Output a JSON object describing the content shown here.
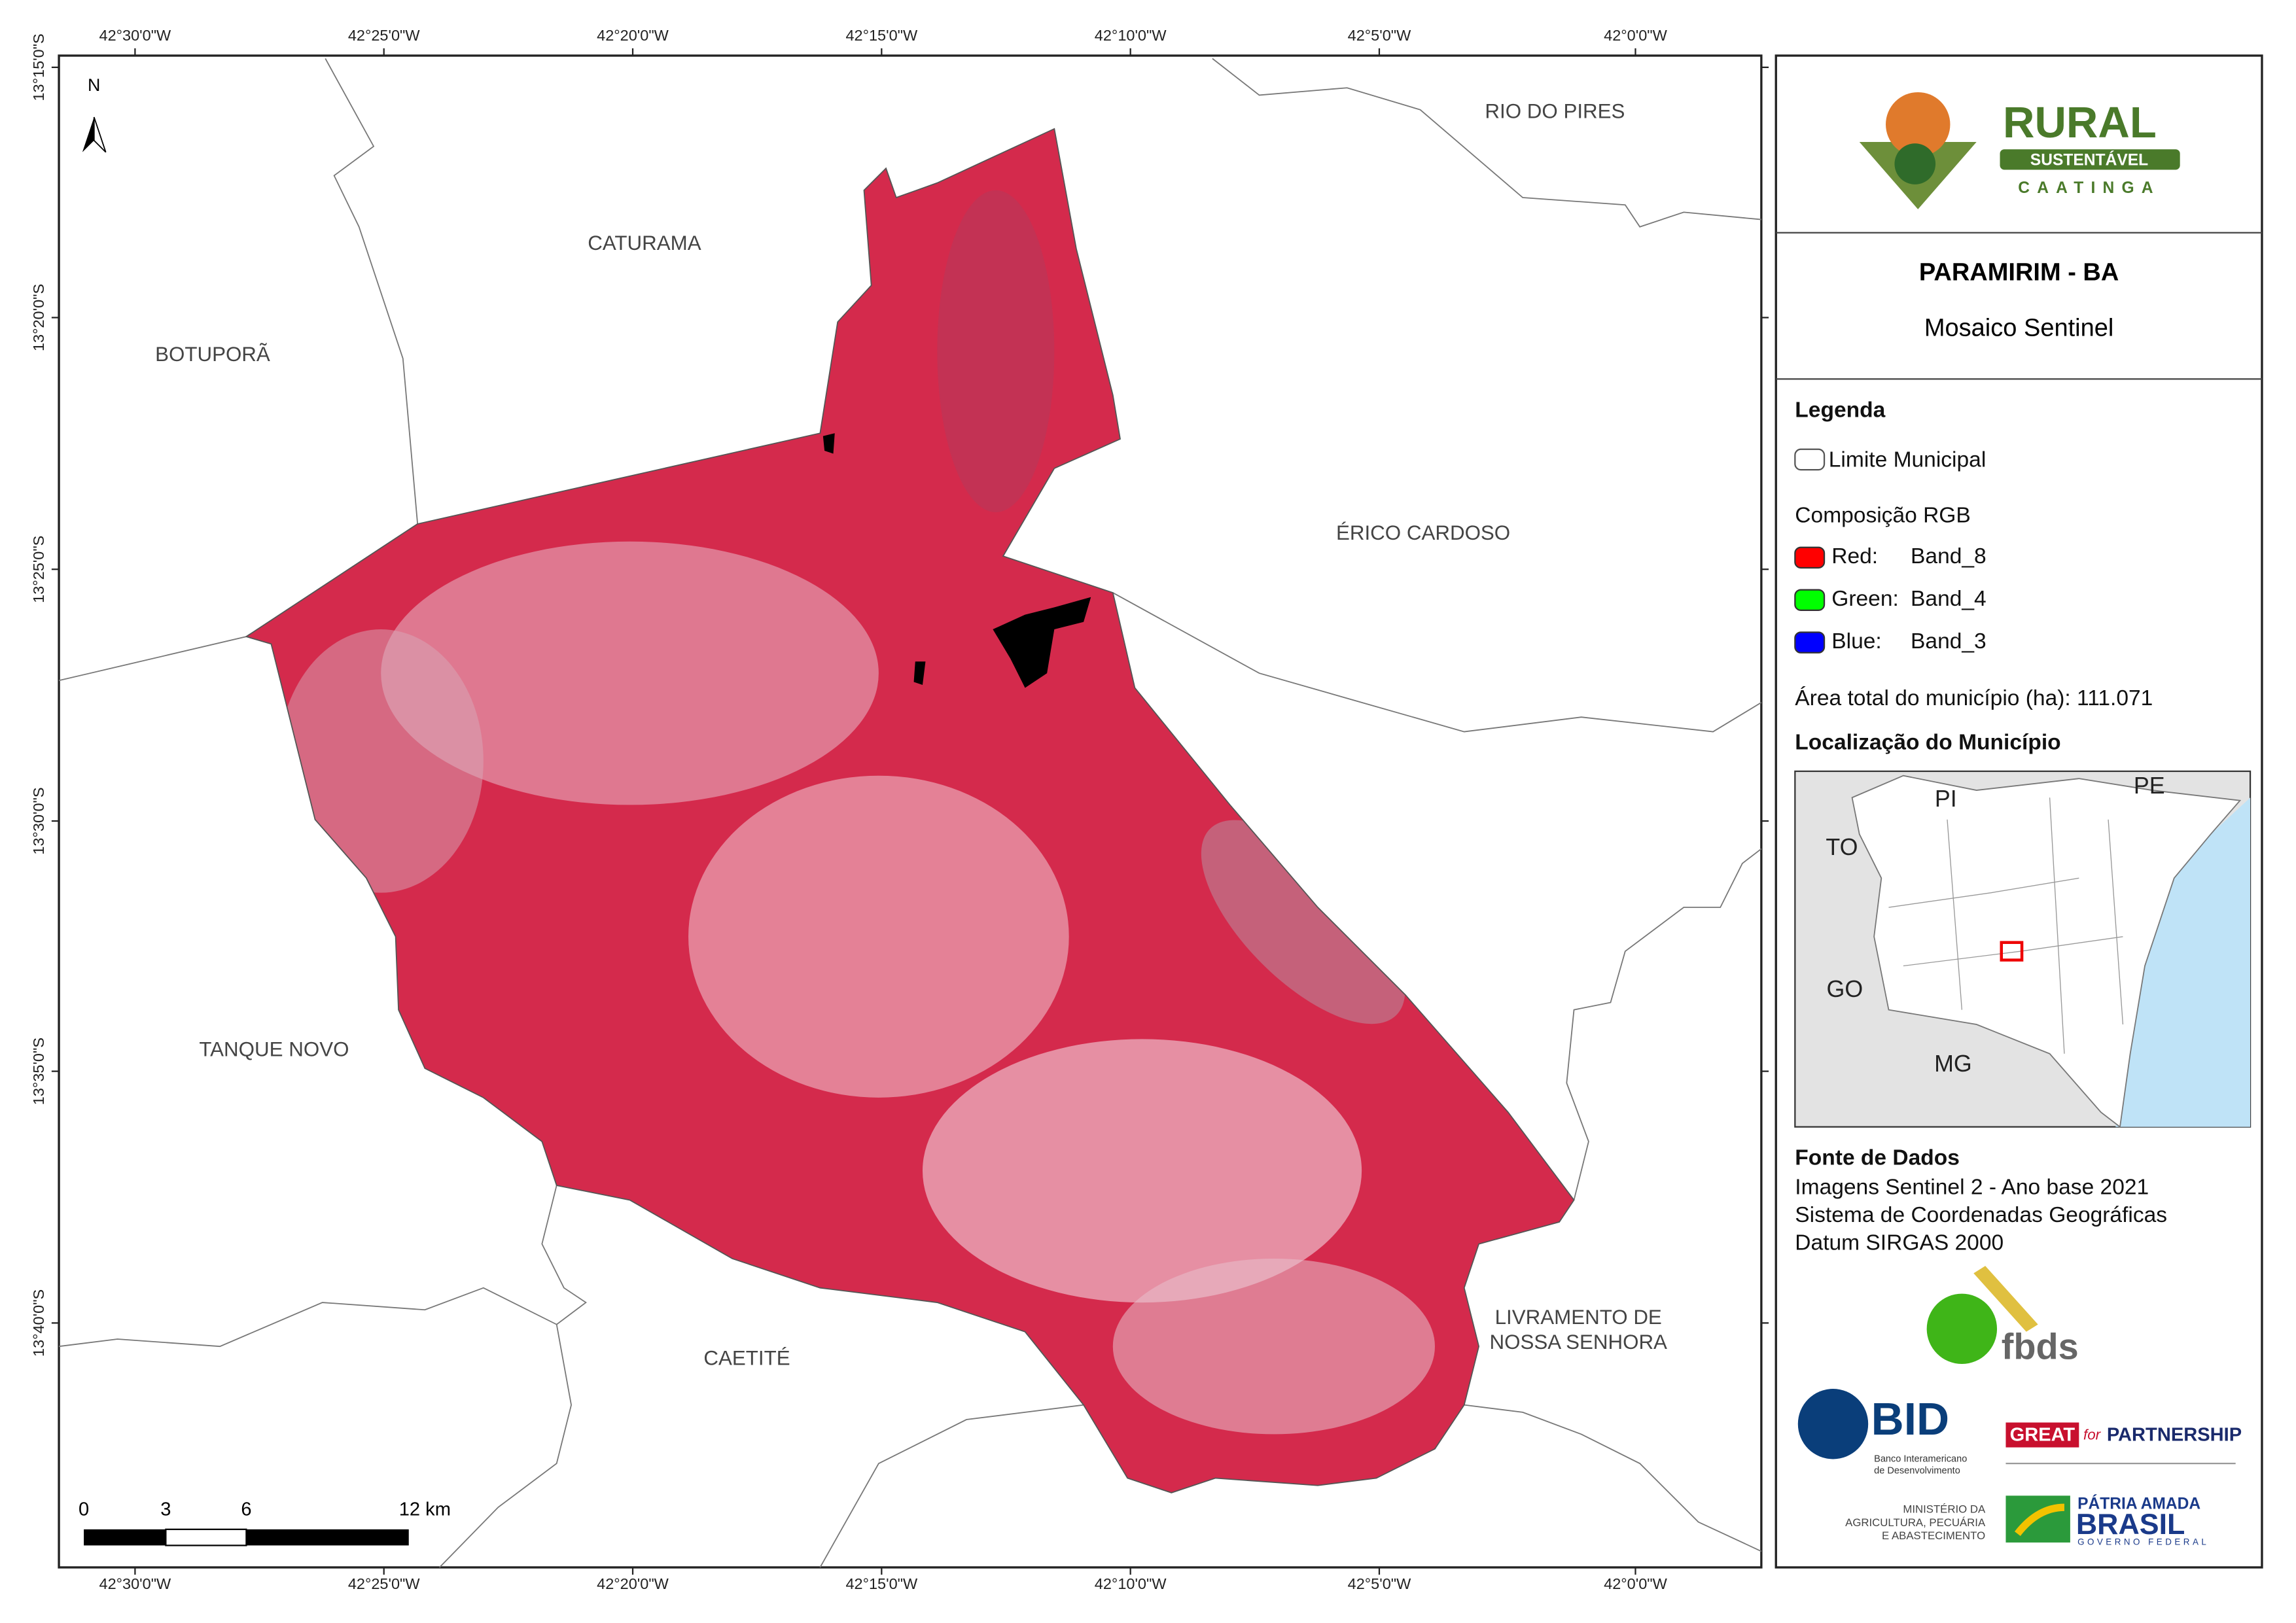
{
  "map": {
    "lon_labels": [
      "42°30'0\"W",
      "42°25'0\"W",
      "42°20'0\"W",
      "42°15'0\"W",
      "42°10'0\"W",
      "42°5'0\"W",
      "42°0'0\"W"
    ],
    "lat_labels": [
      "13°15'0\"S",
      "13°20'0\"S",
      "13°25'0\"S",
      "13°30'0\"S",
      "13°35'0\"S",
      "13°40'0\"S"
    ],
    "north": "N",
    "places": [
      [
        "RIO DO PIRES"
      ],
      [
        "CATURAMA"
      ],
      [
        "BOTUPORÃ"
      ],
      [
        "ÉRICO CARDOSO"
      ],
      [
        "TANQUE NOVO"
      ],
      [
        "CAETITÉ"
      ],
      [
        "LIVRAMENTO DE",
        "NOSSA SENHORA"
      ]
    ],
    "scale_labels": [
      "0",
      "3",
      "6",
      "12 km"
    ]
  },
  "panel": {
    "title": "PARAMIRIM - BA",
    "subtitle": "Mosaico Sentinel",
    "legend_title": "Legenda",
    "boundary": "Limite Municipal",
    "rgb_title": "Composição RGB",
    "bands": [
      {
        "channel": "Red:",
        "band": "Band_8",
        "color": "#ff0000"
      },
      {
        "channel": "Green:",
        "band": "Band_4",
        "color": "#00ff00"
      },
      {
        "channel": "Blue:",
        "band": "Band_3",
        "color": "#0000ff"
      }
    ],
    "area": "Área total do município (ha): 111.071",
    "location_title": "Localização do Município",
    "inset_labels": [
      "PI",
      "PE",
      "TO",
      "GO",
      "MG"
    ],
    "source_title": "Fonte de Dados",
    "source_lines": [
      "Imagens Sentinel 2 - Ano base 2021",
      "Sistema de Coordenadas Geográficas",
      "Datum SIRGAS 2000"
    ]
  },
  "logos": {
    "rural": "RURAL",
    "sustentavel": "SUSTENTÁVEL",
    "caatinga": "CAATINGA",
    "fbds": "fbds",
    "bid": "BID",
    "bid_sub": [
      "Banco Interamericano",
      "de Desenvolvimento"
    ],
    "great": "GREAT",
    "for": "for",
    "partnership": "PARTNERSHIP",
    "ministerio": [
      "MINISTÉRIO DA",
      "AGRICULTURA, PECUÁRIA",
      "E ABASTECIMENTO"
    ],
    "patria": "PÁTRIA AMADA",
    "brasil": "BRASIL",
    "governo": "GOVERNO FEDERAL"
  }
}
